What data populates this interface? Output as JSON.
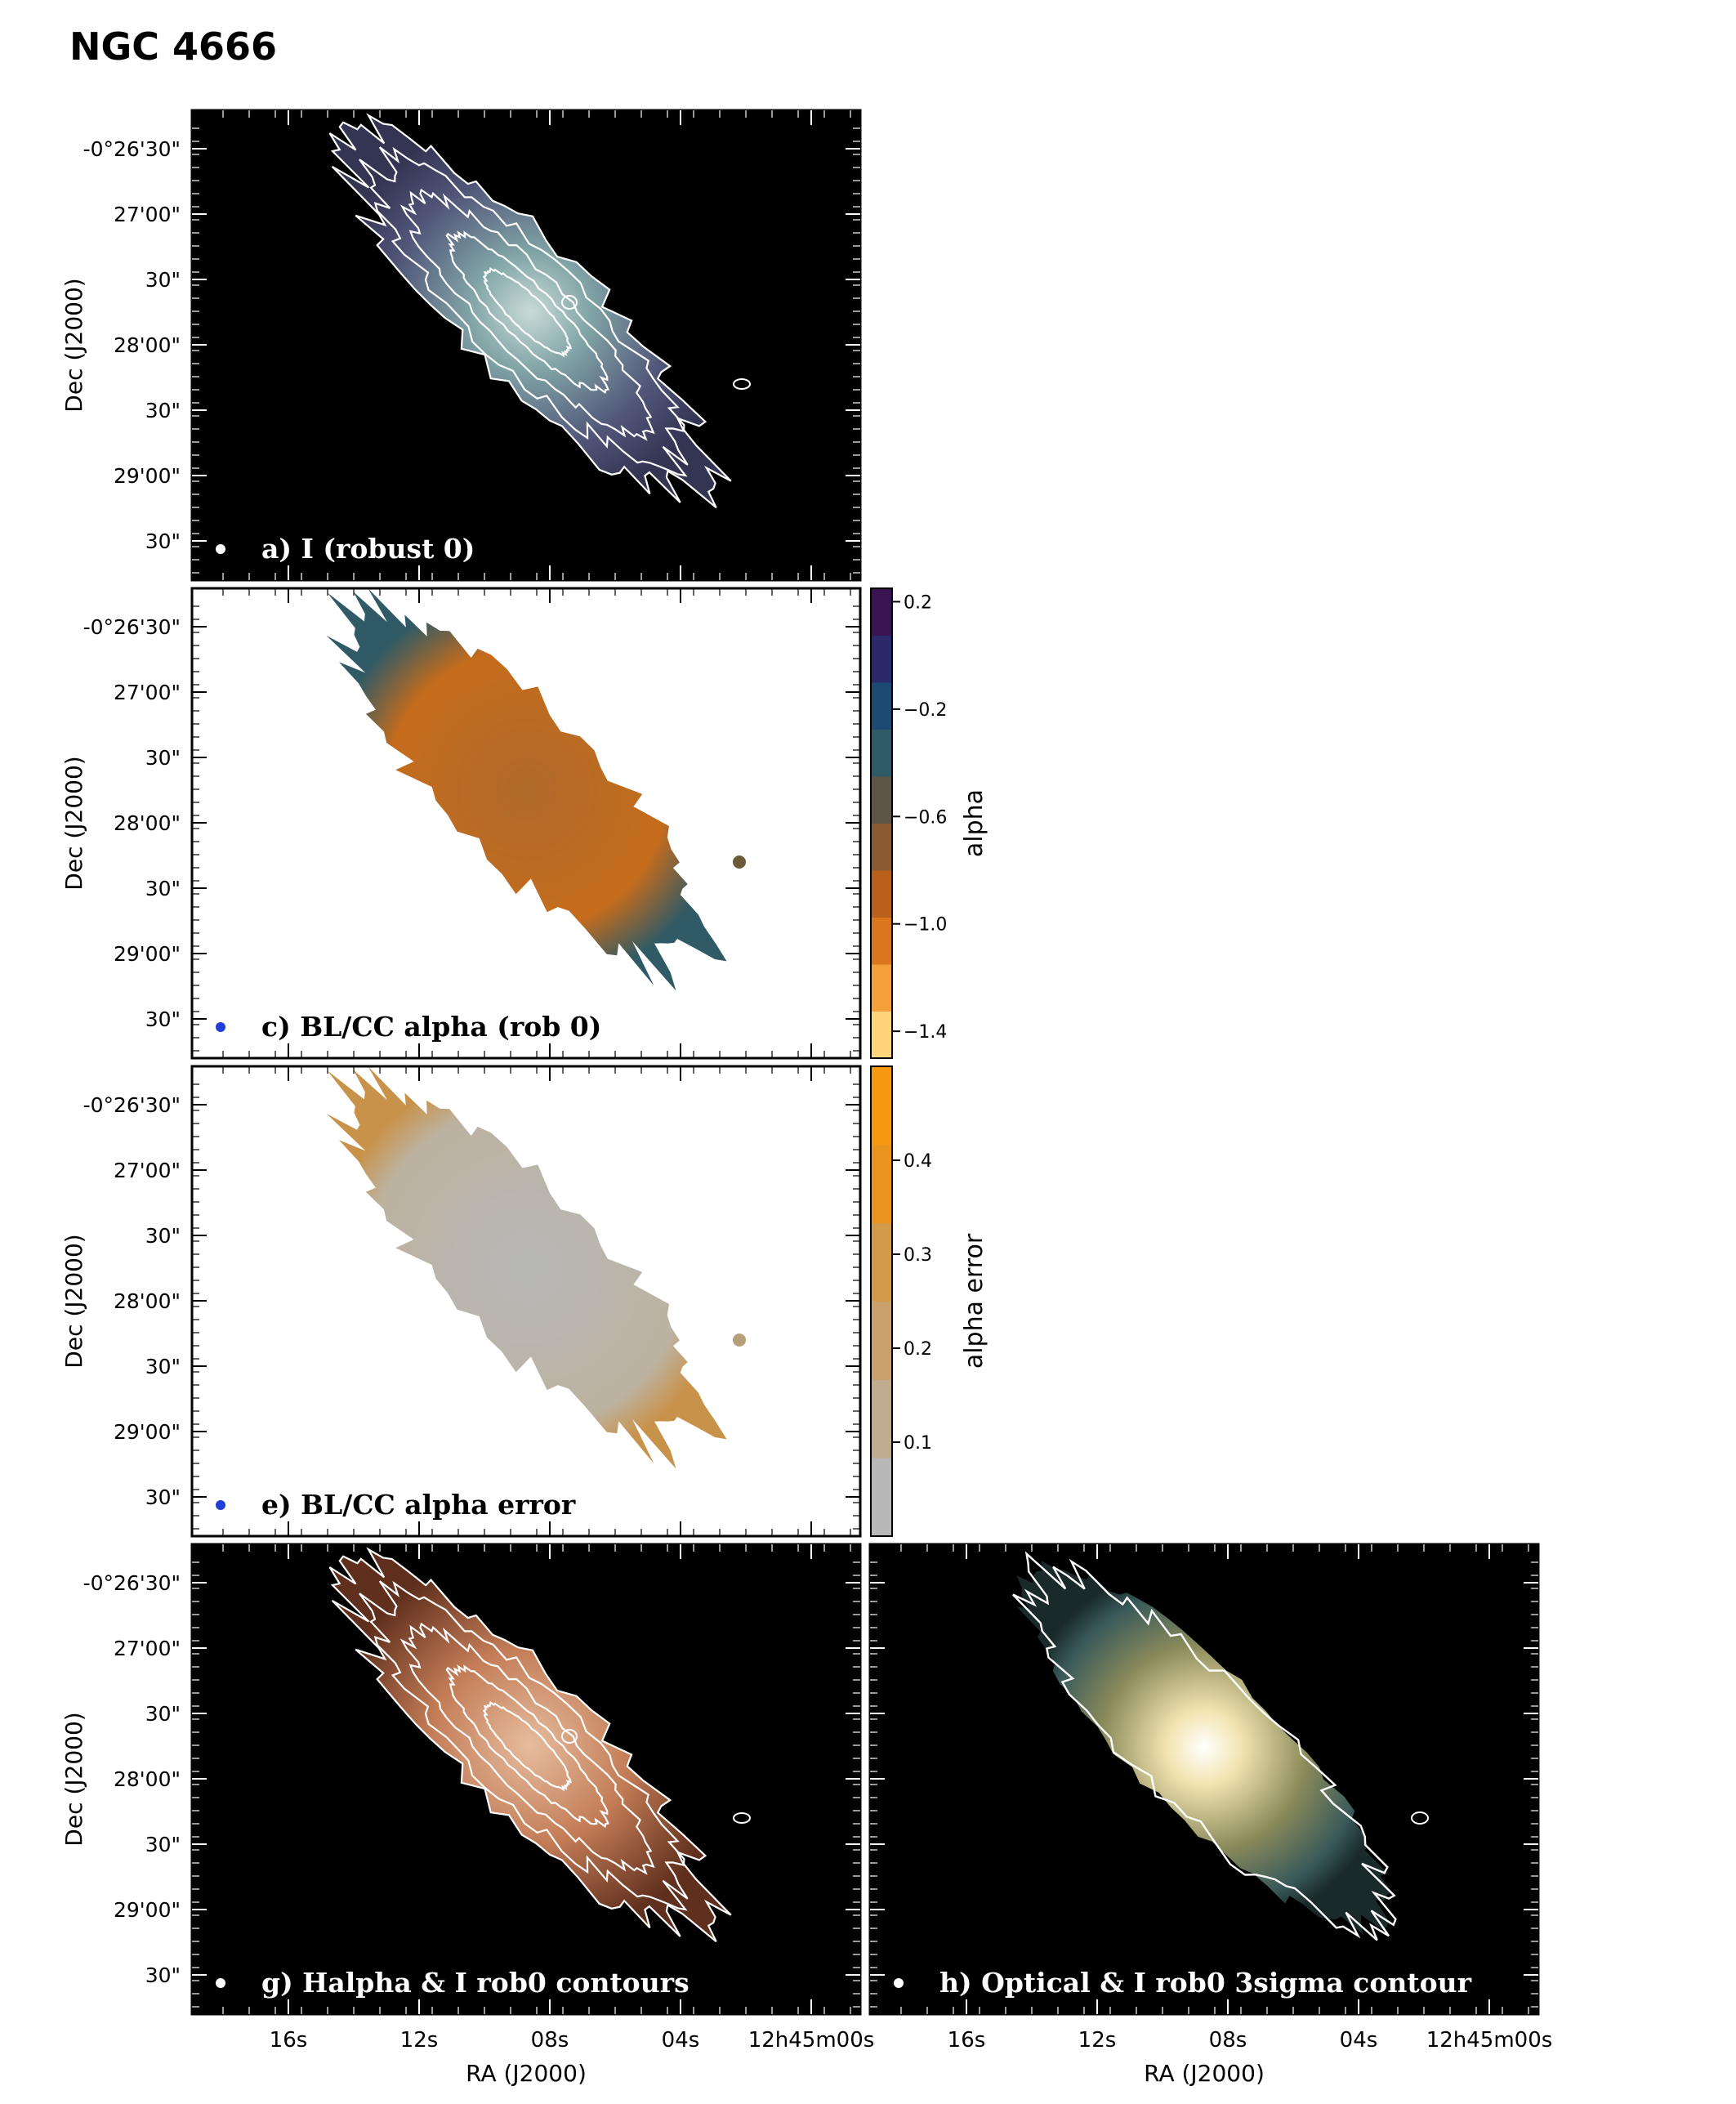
{
  "figure": {
    "title": "NGC 4666"
  },
  "axes": {
    "dec_ticks": [
      "-0°26'30\"",
      "27'00\"",
      "30\"",
      "28'00\"",
      "30\"",
      "29'00\"",
      "30\""
    ],
    "ra_ticks": [
      "16s",
      "12s",
      "08s",
      "04s",
      "12h45m00s"
    ],
    "dec_label": "Dec (J2000)",
    "ra_label": "RA (J2000)"
  },
  "panels": [
    {
      "id": "a",
      "label": "a) I (robust 0)",
      "style": "dark",
      "beam_color": "#ffffff"
    },
    {
      "id": "c",
      "label": "c) BL/CC alpha (rob 0)",
      "style": "light",
      "beam_color": "#1f3fd8"
    },
    {
      "id": "e",
      "label": "e)  BL/CC alpha error",
      "style": "light",
      "beam_color": "#1f3fd8"
    },
    {
      "id": "g",
      "label": "g) Halpha & I rob0 contours",
      "style": "dark",
      "beam_color": "#ffffff"
    },
    {
      "id": "h",
      "label": "h) Optical & I rob0 3sigma contour",
      "style": "dark",
      "beam_color": "#ffffff"
    }
  ],
  "colorbars": {
    "alpha": {
      "label": "alpha",
      "range": [
        -1.5,
        0.25
      ],
      "ticks": [
        {
          "value": 0.2,
          "label": "0.2"
        },
        {
          "value": -0.2,
          "label": "−0.2"
        },
        {
          "value": -0.6,
          "label": "−0.6"
        },
        {
          "value": -1.0,
          "label": "−1.0"
        },
        {
          "value": -1.4,
          "label": "−1.4"
        }
      ],
      "colors": [
        "#ffd47a",
        "#f2a03a",
        "#d9761e",
        "#b9611b",
        "#8a5a35",
        "#5e5548",
        "#2f5a66",
        "#1c4a72",
        "#2a2a6a",
        "#3a1450"
      ]
    },
    "alpha_error": {
      "label": "alpha error",
      "range": [
        0.0,
        0.5
      ],
      "ticks": [
        {
          "value": 0.1,
          "label": "0.1"
        },
        {
          "value": 0.2,
          "label": "0.2"
        },
        {
          "value": 0.3,
          "label": "0.3"
        },
        {
          "value": 0.4,
          "label": "0.4"
        }
      ],
      "colors": [
        "#b8b8b8",
        "#c0ac8e",
        "#c8a16c",
        "#d39a4a",
        "#e8941e",
        "#f59a10"
      ]
    }
  },
  "chart_data": {
    "type": "image",
    "title": "NGC 4666",
    "xlabel": "RA (J2000)",
    "ylabel": "Dec (J2000)",
    "series": [
      {
        "name": "alpha",
        "range": [
          -1.5,
          0.25
        ]
      },
      {
        "name": "alpha error",
        "range": [
          0.0,
          0.5
        ]
      }
    ]
  }
}
